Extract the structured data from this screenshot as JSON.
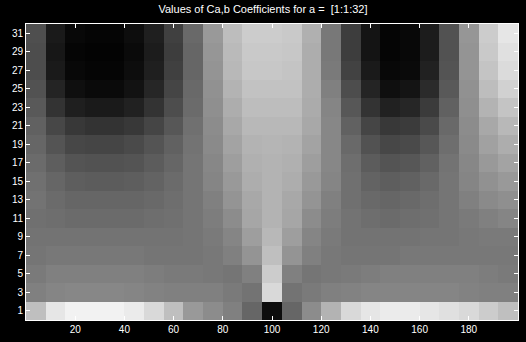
{
  "chart_data": {
    "type": "heatmap",
    "title": "Values of Ca,b Coefficients for a =  [1:1:32]",
    "x": [
      4,
      12,
      20,
      28,
      36,
      44,
      52,
      60,
      68,
      76,
      84,
      92,
      100,
      108,
      116,
      124,
      132,
      140,
      148,
      156,
      164,
      172,
      180,
      188,
      196
    ],
    "y": [
      1,
      3,
      5,
      7,
      9,
      11,
      13,
      15,
      17,
      19,
      21,
      23,
      25,
      27,
      29,
      31
    ],
    "z": [
      [
        0.75,
        0.9,
        0.95,
        0.95,
        0.95,
        0.92,
        0.85,
        0.75,
        0.6,
        0.55,
        0.5,
        0.4,
        0.05,
        0.4,
        0.55,
        0.7,
        0.85,
        0.9,
        0.92,
        0.92,
        0.9,
        0.88,
        0.85,
        0.8,
        0.75
      ],
      [
        0.5,
        0.52,
        0.53,
        0.53,
        0.53,
        0.52,
        0.51,
        0.5,
        0.5,
        0.5,
        0.48,
        0.45,
        0.85,
        0.45,
        0.48,
        0.5,
        0.51,
        0.52,
        0.52,
        0.52,
        0.52,
        0.52,
        0.51,
        0.5,
        0.5
      ],
      [
        0.48,
        0.5,
        0.5,
        0.5,
        0.5,
        0.5,
        0.49,
        0.48,
        0.48,
        0.47,
        0.46,
        0.5,
        0.8,
        0.5,
        0.46,
        0.47,
        0.48,
        0.49,
        0.5,
        0.5,
        0.5,
        0.5,
        0.5,
        0.49,
        0.48
      ],
      [
        0.46,
        0.47,
        0.47,
        0.47,
        0.47,
        0.47,
        0.46,
        0.46,
        0.46,
        0.47,
        0.5,
        0.58,
        0.75,
        0.58,
        0.5,
        0.47,
        0.46,
        0.46,
        0.46,
        0.47,
        0.47,
        0.47,
        0.47,
        0.47,
        0.47
      ],
      [
        0.45,
        0.45,
        0.45,
        0.45,
        0.45,
        0.45,
        0.45,
        0.45,
        0.46,
        0.48,
        0.52,
        0.62,
        0.72,
        0.62,
        0.52,
        0.48,
        0.45,
        0.45,
        0.45,
        0.45,
        0.46,
        0.46,
        0.47,
        0.48,
        0.48
      ],
      [
        0.44,
        0.43,
        0.42,
        0.42,
        0.42,
        0.42,
        0.43,
        0.44,
        0.46,
        0.49,
        0.55,
        0.65,
        0.7,
        0.65,
        0.55,
        0.49,
        0.45,
        0.43,
        0.42,
        0.43,
        0.44,
        0.46,
        0.48,
        0.5,
        0.52
      ],
      [
        0.45,
        0.42,
        0.4,
        0.4,
        0.4,
        0.4,
        0.41,
        0.43,
        0.46,
        0.5,
        0.58,
        0.66,
        0.7,
        0.66,
        0.58,
        0.5,
        0.44,
        0.41,
        0.4,
        0.41,
        0.43,
        0.46,
        0.5,
        0.54,
        0.56
      ],
      [
        0.44,
        0.4,
        0.37,
        0.36,
        0.36,
        0.37,
        0.39,
        0.42,
        0.46,
        0.52,
        0.6,
        0.68,
        0.7,
        0.68,
        0.6,
        0.52,
        0.44,
        0.39,
        0.37,
        0.38,
        0.41,
        0.46,
        0.52,
        0.57,
        0.6
      ],
      [
        0.42,
        0.37,
        0.33,
        0.32,
        0.32,
        0.33,
        0.36,
        0.4,
        0.46,
        0.53,
        0.62,
        0.69,
        0.7,
        0.69,
        0.62,
        0.53,
        0.43,
        0.36,
        0.33,
        0.34,
        0.38,
        0.45,
        0.53,
        0.6,
        0.64
      ],
      [
        0.4,
        0.33,
        0.28,
        0.27,
        0.27,
        0.29,
        0.33,
        0.38,
        0.45,
        0.54,
        0.64,
        0.7,
        0.71,
        0.7,
        0.64,
        0.53,
        0.41,
        0.32,
        0.28,
        0.29,
        0.34,
        0.43,
        0.54,
        0.63,
        0.68
      ],
      [
        0.38,
        0.28,
        0.22,
        0.2,
        0.2,
        0.22,
        0.27,
        0.34,
        0.44,
        0.55,
        0.66,
        0.72,
        0.72,
        0.72,
        0.66,
        0.53,
        0.38,
        0.27,
        0.22,
        0.23,
        0.29,
        0.41,
        0.55,
        0.66,
        0.72
      ],
      [
        0.35,
        0.2,
        0.12,
        0.1,
        0.1,
        0.13,
        0.2,
        0.3,
        0.42,
        0.56,
        0.68,
        0.74,
        0.74,
        0.74,
        0.67,
        0.52,
        0.34,
        0.2,
        0.13,
        0.15,
        0.23,
        0.38,
        0.56,
        0.7,
        0.77
      ],
      [
        0.32,
        0.14,
        0.06,
        0.04,
        0.04,
        0.07,
        0.15,
        0.27,
        0.41,
        0.57,
        0.7,
        0.76,
        0.76,
        0.76,
        0.68,
        0.5,
        0.3,
        0.14,
        0.06,
        0.08,
        0.17,
        0.35,
        0.57,
        0.74,
        0.82
      ],
      [
        0.3,
        0.1,
        0.03,
        0.02,
        0.02,
        0.05,
        0.12,
        0.25,
        0.4,
        0.58,
        0.72,
        0.78,
        0.78,
        0.77,
        0.68,
        0.48,
        0.26,
        0.1,
        0.03,
        0.04,
        0.13,
        0.33,
        0.58,
        0.77,
        0.86
      ],
      [
        0.3,
        0.09,
        0.02,
        0.01,
        0.01,
        0.04,
        0.11,
        0.24,
        0.4,
        0.59,
        0.73,
        0.79,
        0.79,
        0.78,
        0.68,
        0.47,
        0.24,
        0.08,
        0.02,
        0.03,
        0.11,
        0.32,
        0.58,
        0.79,
        0.88
      ],
      [
        0.31,
        0.1,
        0.03,
        0.02,
        0.02,
        0.05,
        0.12,
        0.25,
        0.41,
        0.6,
        0.74,
        0.8,
        0.8,
        0.79,
        0.69,
        0.47,
        0.24,
        0.08,
        0.02,
        0.03,
        0.11,
        0.32,
        0.59,
        0.8,
        0.9
      ]
    ],
    "zlim": [
      0,
      1
    ],
    "xlim": [
      0,
      200
    ],
    "ylim": [
      0,
      32
    ],
    "xticks": [
      20,
      40,
      60,
      80,
      100,
      120,
      140,
      160,
      180
    ],
    "yticks": [
      1,
      3,
      5,
      7,
      9,
      11,
      13,
      15,
      17,
      19,
      21,
      23,
      25,
      27,
      29,
      31
    ]
  }
}
